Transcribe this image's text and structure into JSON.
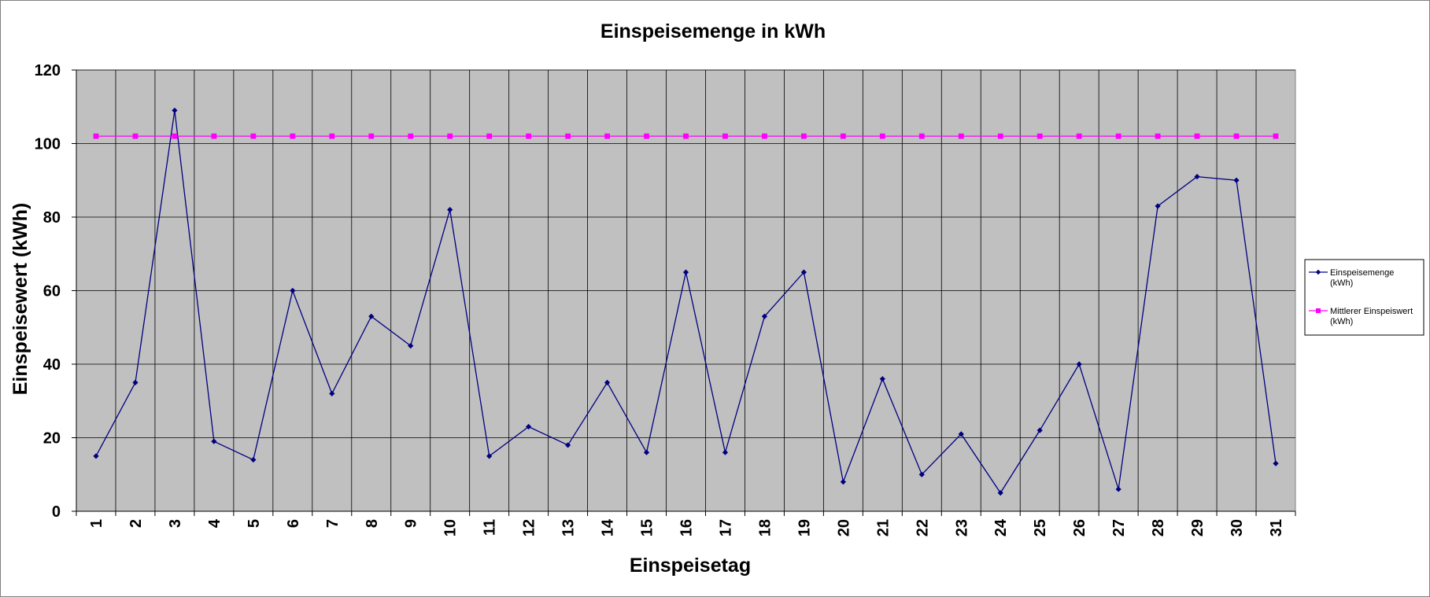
{
  "chart_data": {
    "type": "line",
    "title": "Einspeisemenge in kWh",
    "xlabel": "Einspeisetag",
    "ylabel": "Einspeisewert  (kWh)",
    "categories": [
      "1",
      "2",
      "3",
      "4",
      "5",
      "6",
      "7",
      "8",
      "9",
      "10",
      "11",
      "12",
      "13",
      "14",
      "15",
      "16",
      "17",
      "18",
      "19",
      "20",
      "21",
      "22",
      "23",
      "24",
      "25",
      "26",
      "27",
      "28",
      "29",
      "30",
      "31"
    ],
    "ylim": [
      0,
      120
    ],
    "yticks": [
      "0",
      "20",
      "40",
      "60",
      "80",
      "100",
      "120"
    ],
    "grid": true,
    "legend_position": "right",
    "series": [
      {
        "name_lines": [
          "Einspeisemenge",
          "(kWh)"
        ],
        "color": "#000080",
        "marker": "diamond",
        "values": [
          15,
          35,
          109,
          19,
          14,
          60,
          32,
          53,
          45,
          82,
          15,
          23,
          18,
          35,
          16,
          65,
          16,
          53,
          65,
          8,
          36,
          10,
          21,
          5,
          22,
          40,
          6,
          83,
          91,
          90,
          13
        ]
      },
      {
        "name_lines": [
          "Mittlerer Einspeiswert",
          "(kWh)"
        ],
        "color": "#FF00FF",
        "marker": "square",
        "values": [
          102,
          102,
          102,
          102,
          102,
          102,
          102,
          102,
          102,
          102,
          102,
          102,
          102,
          102,
          102,
          102,
          102,
          102,
          102,
          102,
          102,
          102,
          102,
          102,
          102,
          102,
          102,
          102,
          102,
          102,
          102
        ]
      }
    ],
    "plot_background": "#C0C0C0"
  }
}
